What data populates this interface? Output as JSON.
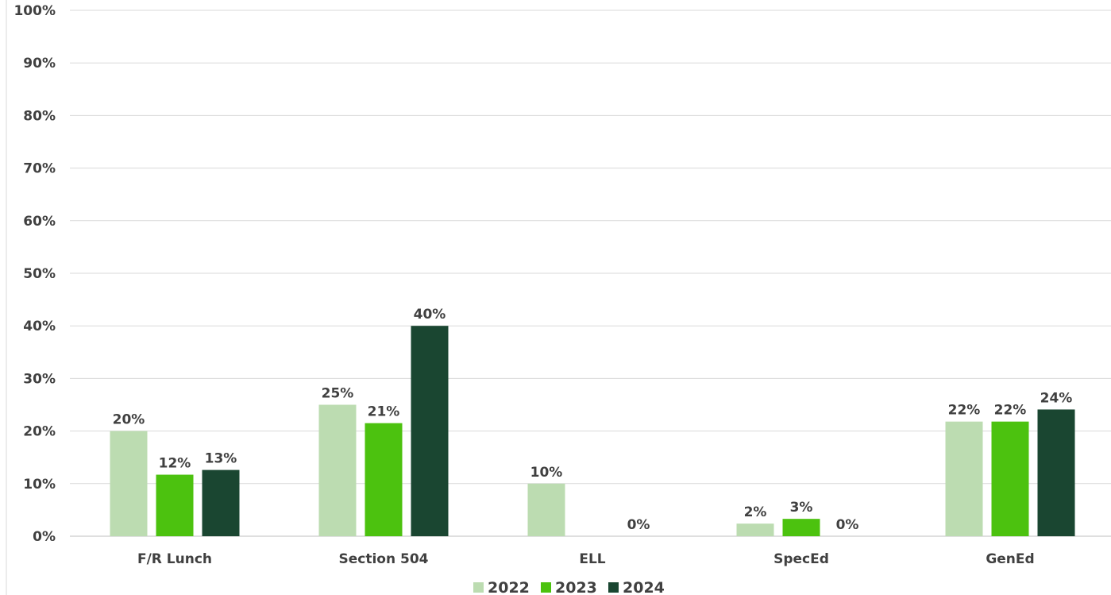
{
  "chart_data": {
    "type": "bar",
    "title": "",
    "xlabel": "",
    "ylabel": "",
    "categories": [
      "F/R Lunch",
      "Section 504",
      "ELL",
      "SpecEd",
      "GenEd"
    ],
    "series": [
      {
        "name": "2022",
        "color": "#bcdcb1",
        "values": [
          0.2,
          0.25,
          0.1,
          0.024,
          0.218
        ],
        "labels": [
          "20%",
          "25%",
          "10%",
          "2%",
          "22%"
        ]
      },
      {
        "name": "2023",
        "color": "#4cc20f",
        "values": [
          0.117,
          0.215,
          0.0,
          0.033,
          0.218
        ],
        "labels": [
          "12%",
          "21%",
          "",
          "3%",
          "22%"
        ]
      },
      {
        "name": "2024",
        "color": "#1a4631",
        "values": [
          0.126,
          0.4,
          0.0,
          0.0,
          0.241
        ],
        "labels": [
          "13%",
          "40%",
          "0%",
          "0%",
          "24%"
        ]
      }
    ],
    "ylim": [
      0,
      1
    ],
    "yticks": [
      0,
      0.1,
      0.2,
      0.3,
      0.4,
      0.5,
      0.6,
      0.7,
      0.8,
      0.9,
      1.0
    ],
    "ytick_labels": [
      "0%",
      "10%",
      "20%",
      "30%",
      "40%",
      "50%",
      "60%",
      "70%",
      "80%",
      "90%",
      "100%"
    ],
    "grid": true,
    "legend_position": "bottom"
  }
}
